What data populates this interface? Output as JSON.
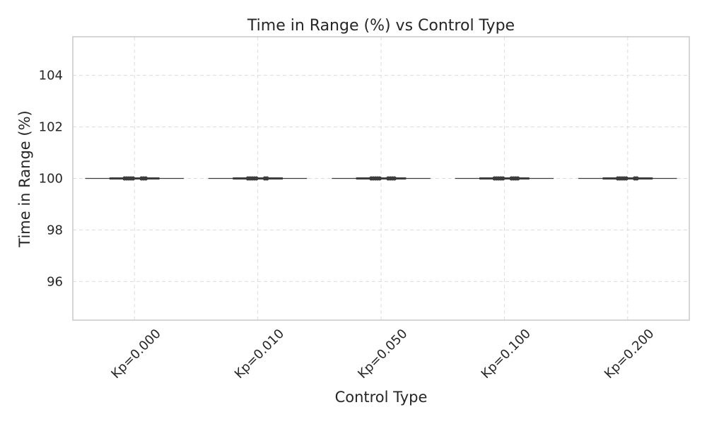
{
  "chart_data": {
    "type": "box",
    "title": "Time in Range (%) vs Control Type",
    "xlabel": "Control Type",
    "ylabel": "Time in Range (%)",
    "categories": [
      "Kp=0.000",
      "Kp=0.010",
      "Kp=0.050",
      "Kp=0.100",
      "Kp=0.200"
    ],
    "ylim": [
      94.5,
      105.5
    ],
    "yticks": [
      96,
      98,
      100,
      102,
      104
    ],
    "ytick_labels": [
      "96",
      "98",
      "100",
      "102",
      "104"
    ],
    "grid": true,
    "series": [
      {
        "category": "Kp=0.000",
        "q1": 100,
        "median": 100,
        "q3": 100,
        "whisker_low": 100,
        "whisker_high": 100,
        "outliers": [
          100,
          100,
          100,
          100,
          100,
          100,
          100,
          100
        ]
      },
      {
        "category": "Kp=0.010",
        "q1": 100,
        "median": 100,
        "q3": 100,
        "whisker_low": 100,
        "whisker_high": 100,
        "outliers": [
          100,
          100,
          100,
          100,
          100,
          100,
          100
        ]
      },
      {
        "category": "Kp=0.050",
        "q1": 100,
        "median": 100,
        "q3": 100,
        "whisker_low": 100,
        "whisker_high": 100,
        "outliers": [
          100,
          100,
          100,
          100,
          100,
          100,
          100,
          100,
          100
        ]
      },
      {
        "category": "Kp=0.100",
        "q1": 100,
        "median": 100,
        "q3": 100,
        "whisker_low": 100,
        "whisker_high": 100,
        "outliers": [
          100,
          100,
          100,
          100,
          100,
          100,
          100,
          100,
          100
        ]
      },
      {
        "category": "Kp=0.200",
        "q1": 100,
        "median": 100,
        "q3": 100,
        "whisker_low": 100,
        "whisker_high": 100,
        "outliers": [
          100,
          100,
          100,
          100,
          100,
          100,
          100
        ]
      }
    ],
    "colors": {
      "box_line": "#3d3d3d",
      "outlier": "#3d3d3d",
      "grid": "#dcdcdc",
      "frame": "#c8c8c8",
      "text": "#262626"
    }
  }
}
